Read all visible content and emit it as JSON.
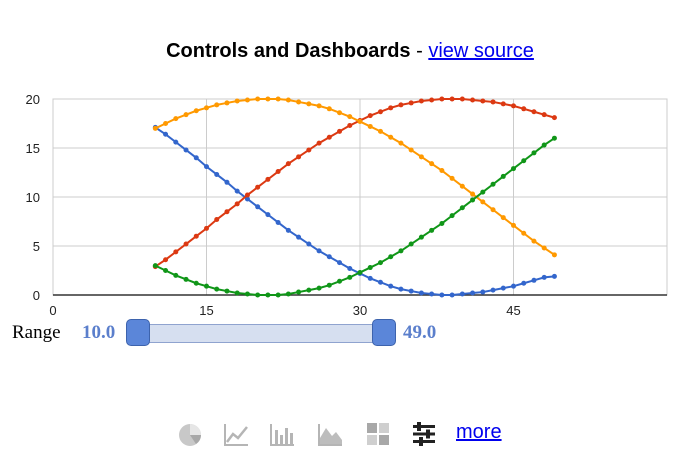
{
  "header": {
    "title": "Controls and Dashboards",
    "separator": " - ",
    "link": "view source"
  },
  "range_control": {
    "label": "Range",
    "min_value": "10.0",
    "max_value": "49.0",
    "track_color": "#d6dff0",
    "handle_color": "#5b86d9"
  },
  "toolbar": {
    "icons": [
      "pie-chart-icon",
      "line-chart-icon",
      "bar-chart-icon",
      "area-chart-icon",
      "table-icon",
      "controls-icon"
    ],
    "more_label": "more"
  },
  "chart_data": {
    "type": "line",
    "xlim": [
      0,
      60
    ],
    "ylim": [
      0,
      20
    ],
    "xticks": [
      0,
      15,
      30,
      45
    ],
    "yticks": [
      0,
      5,
      10,
      15,
      20
    ],
    "grid": true,
    "legend": "none",
    "x": [
      10,
      11,
      12,
      13,
      14,
      15,
      16,
      17,
      18,
      19,
      20,
      21,
      22,
      23,
      24,
      25,
      26,
      27,
      28,
      29,
      30,
      31,
      32,
      33,
      34,
      35,
      36,
      37,
      38,
      39,
      40,
      41,
      42,
      43,
      44,
      45,
      46,
      47,
      48,
      49
    ],
    "series": [
      {
        "color": "#3366cc",
        "values": [
          17.1,
          16.4,
          15.6,
          14.8,
          14.0,
          13.1,
          12.3,
          11.5,
          10.6,
          9.8,
          9.0,
          8.2,
          7.4,
          6.6,
          5.9,
          5.2,
          4.5,
          3.9,
          3.3,
          2.7,
          2.2,
          1.7,
          1.3,
          0.9,
          0.6,
          0.4,
          0.2,
          0.1,
          0.0,
          0.0,
          0.1,
          0.2,
          0.3,
          0.5,
          0.7,
          0.9,
          1.2,
          1.5,
          1.8,
          1.9
        ]
      },
      {
        "color": "#dc3912",
        "values": [
          2.9,
          3.6,
          4.4,
          5.2,
          6.0,
          6.8,
          7.7,
          8.5,
          9.3,
          10.2,
          11.0,
          11.8,
          12.6,
          13.4,
          14.1,
          14.8,
          15.5,
          16.1,
          16.7,
          17.3,
          17.8,
          18.3,
          18.7,
          19.1,
          19.4,
          19.6,
          19.8,
          19.9,
          20.0,
          20.0,
          20.0,
          19.9,
          19.8,
          19.7,
          19.5,
          19.3,
          19.0,
          18.7,
          18.4,
          18.1
        ]
      },
      {
        "color": "#ff9900",
        "values": [
          17.0,
          17.5,
          18.0,
          18.4,
          18.8,
          19.1,
          19.4,
          19.6,
          19.8,
          19.9,
          20.0,
          20.0,
          20.0,
          19.9,
          19.7,
          19.5,
          19.3,
          19.0,
          18.6,
          18.2,
          17.7,
          17.2,
          16.7,
          16.1,
          15.5,
          14.8,
          14.1,
          13.4,
          12.7,
          11.9,
          11.1,
          10.3,
          9.5,
          8.7,
          7.9,
          7.1,
          6.3,
          5.5,
          4.8,
          4.1
        ]
      },
      {
        "color": "#109618",
        "values": [
          3.0,
          2.5,
          2.0,
          1.6,
          1.2,
          0.9,
          0.6,
          0.4,
          0.2,
          0.1,
          0.0,
          0.0,
          0.0,
          0.1,
          0.3,
          0.5,
          0.7,
          1.0,
          1.4,
          1.8,
          2.3,
          2.8,
          3.3,
          3.9,
          4.5,
          5.2,
          5.9,
          6.6,
          7.3,
          8.1,
          8.9,
          9.7,
          10.5,
          11.3,
          12.1,
          12.9,
          13.7,
          14.5,
          15.3,
          16.0
        ]
      }
    ]
  }
}
